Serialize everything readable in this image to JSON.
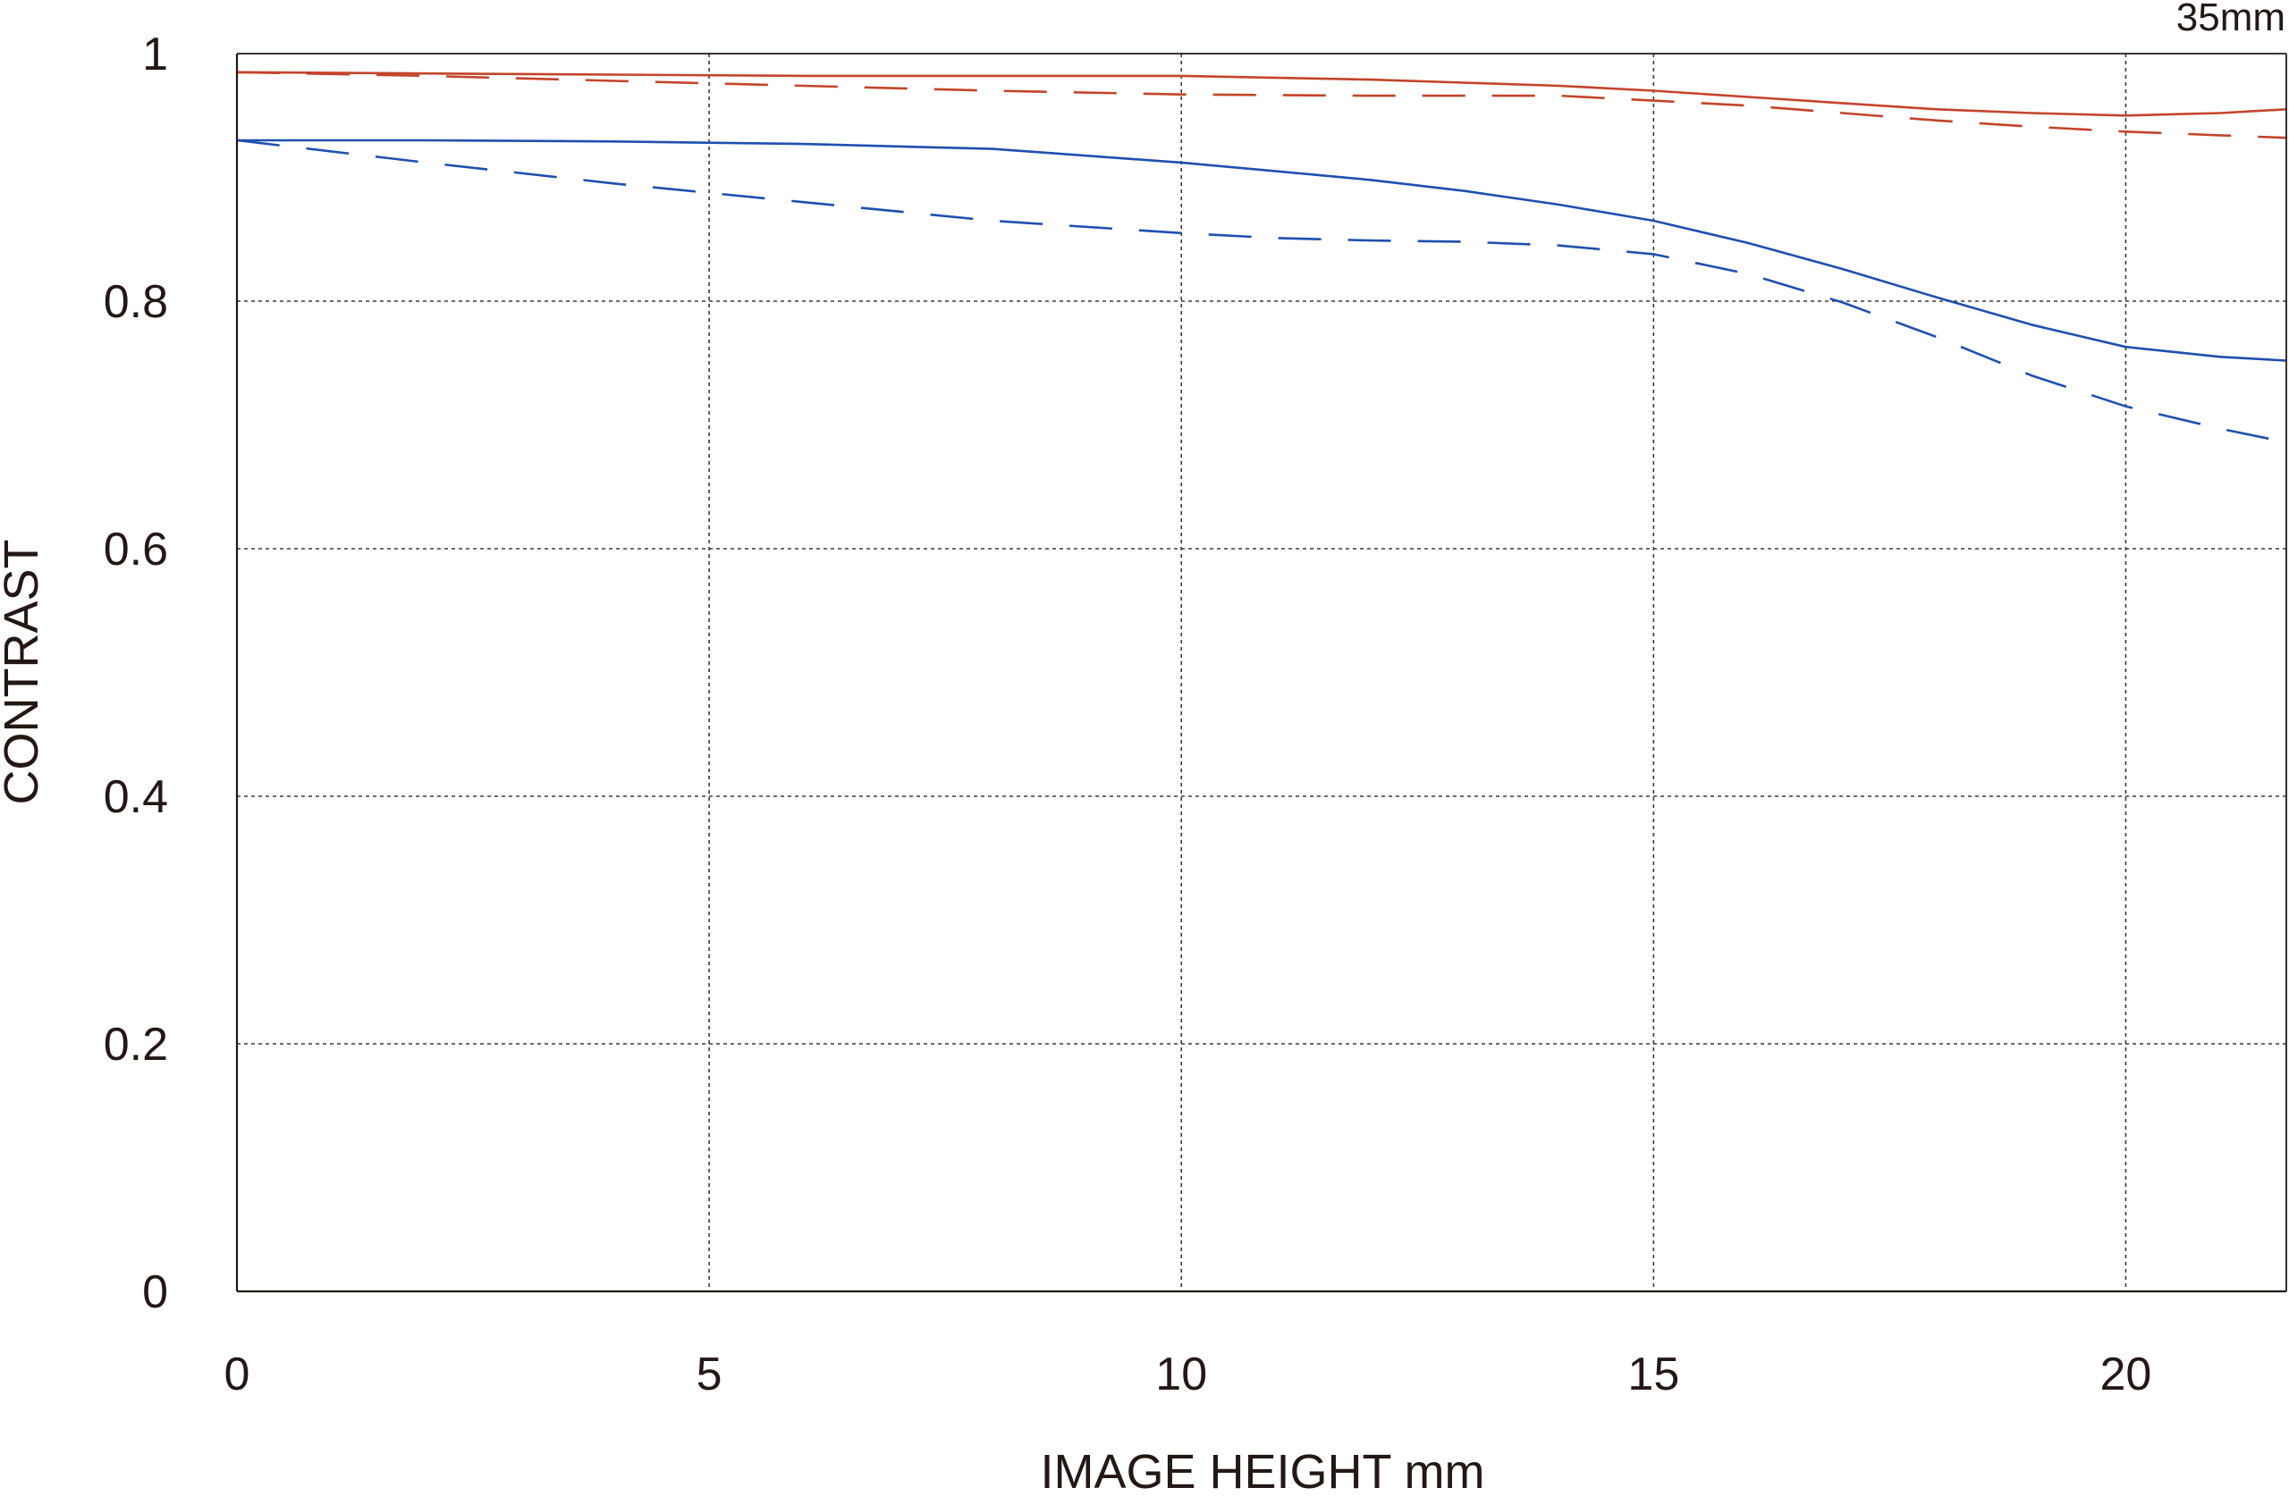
{
  "chart_data": {
    "type": "line",
    "title": "",
    "focal_length_label": "35mm",
    "xlabel": "IMAGE HEIGHT  mm",
    "ylabel": "CONTRAST",
    "xlim": [
      0,
      21.7
    ],
    "ylim": [
      0,
      1
    ],
    "x_ticks": [
      0,
      5,
      10,
      15,
      20
    ],
    "x_tick_labels": [
      "0",
      "5",
      "10",
      "15",
      "20"
    ],
    "y_ticks": [
      0,
      0.2,
      0.4,
      0.6,
      0.8,
      1
    ],
    "y_tick_labels": [
      "0",
      "0.2",
      "0.4",
      "0.6",
      "0.8",
      "1"
    ],
    "grid": true,
    "grid_style": "dotted",
    "legend": "none",
    "series": [
      {
        "color": "#c4442a",
        "dash": "solid",
        "points": [
          [
            0,
            0.985
          ],
          [
            2,
            0.984
          ],
          [
            4,
            0.983
          ],
          [
            6,
            0.982
          ],
          [
            8,
            0.982
          ],
          [
            10,
            0.982
          ],
          [
            12,
            0.979
          ],
          [
            14,
            0.974
          ],
          [
            15,
            0.97
          ],
          [
            16,
            0.965
          ],
          [
            17,
            0.96
          ],
          [
            18,
            0.955
          ],
          [
            19,
            0.952
          ],
          [
            20,
            0.95
          ],
          [
            21,
            0.952
          ],
          [
            21.7,
            0.955
          ]
        ]
      },
      {
        "color": "#c4442a",
        "dash": "dashed",
        "points": [
          [
            0,
            0.985
          ],
          [
            2,
            0.982
          ],
          [
            4,
            0.978
          ],
          [
            6,
            0.974
          ],
          [
            8,
            0.97
          ],
          [
            10,
            0.967
          ],
          [
            12,
            0.966
          ],
          [
            14,
            0.966
          ],
          [
            15,
            0.962
          ],
          [
            16,
            0.958
          ],
          [
            17,
            0.952
          ],
          [
            18,
            0.946
          ],
          [
            19,
            0.941
          ],
          [
            20,
            0.937
          ],
          [
            21,
            0.934
          ],
          [
            21.7,
            0.932
          ]
        ]
      },
      {
        "color": "#1f4fb0",
        "dash": "solid",
        "points": [
          [
            0,
            0.93
          ],
          [
            2,
            0.93
          ],
          [
            4,
            0.929
          ],
          [
            6,
            0.927
          ],
          [
            8,
            0.923
          ],
          [
            10,
            0.912
          ],
          [
            12,
            0.898
          ],
          [
            13,
            0.889
          ],
          [
            14,
            0.878
          ],
          [
            15,
            0.865
          ],
          [
            16,
            0.847
          ],
          [
            17,
            0.826
          ],
          [
            18,
            0.803
          ],
          [
            19,
            0.781
          ],
          [
            20,
            0.763
          ],
          [
            21,
            0.755
          ],
          [
            21.7,
            0.752
          ]
        ]
      },
      {
        "color": "#1f4fb0",
        "dash": "dashed",
        "points": [
          [
            0,
            0.93
          ],
          [
            2,
            0.912
          ],
          [
            4,
            0.895
          ],
          [
            6,
            0.88
          ],
          [
            8,
            0.865
          ],
          [
            10,
            0.855
          ],
          [
            11,
            0.851
          ],
          [
            12,
            0.849
          ],
          [
            13,
            0.848
          ],
          [
            14,
            0.845
          ],
          [
            15,
            0.838
          ],
          [
            16,
            0.822
          ],
          [
            17,
            0.799
          ],
          [
            18,
            0.771
          ],
          [
            19,
            0.74
          ],
          [
            20,
            0.715
          ],
          [
            21,
            0.697
          ],
          [
            21.7,
            0.686
          ]
        ]
      }
    ]
  }
}
